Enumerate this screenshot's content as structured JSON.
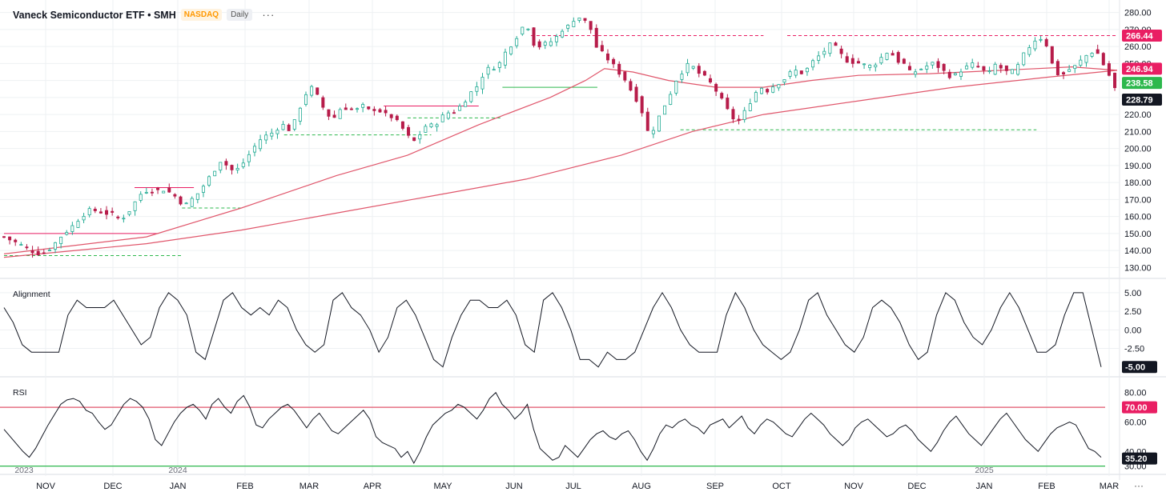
{
  "header": {
    "title": "Vaneck Semiconductor ETF • SMH",
    "exchange": "NASDAQ",
    "interval": "Daily",
    "more": "···"
  },
  "colors": {
    "up": "#22ab94",
    "down": "#b71c4a",
    "ma": "#e0566b",
    "grid": "#eef0f3",
    "green_label": "#2db84d",
    "red_label": "#e91e63",
    "dark_label": "#131722"
  },
  "chart_data": [
    {
      "type": "candlestick",
      "title": "Vaneck Semiconductor ETF • SMH",
      "y_axis_ticks": [
        "280.00",
        "270.00",
        "260.00",
        "250.00",
        "240.00",
        "230.00",
        "220.00",
        "210.00",
        "200.00",
        "190.00",
        "180.00",
        "170.00",
        "160.00",
        "150.00",
        "140.00",
        "130.00"
      ],
      "ylim": [
        125,
        285
      ],
      "x_tick_labels": [
        "NOV",
        "DEC",
        "JAN",
        "FEB",
        "MAR",
        "APR",
        "MAY",
        "JUN",
        "JUL",
        "AUG",
        "SEP",
        "OCT",
        "NOV",
        "DEC",
        "JAN",
        "FEB",
        "MAR"
      ],
      "year_labels": [
        "2023",
        "2024",
        "2025"
      ],
      "close_path": [
        [
          0,
          148
        ],
        [
          6,
          144
        ],
        [
          10,
          141
        ],
        [
          13,
          139
        ],
        [
          16,
          138
        ],
        [
          19,
          141
        ],
        [
          22,
          145
        ],
        [
          25,
          150
        ],
        [
          28,
          153
        ],
        [
          31,
          158
        ],
        [
          34,
          162
        ],
        [
          37,
          164
        ],
        [
          40,
          163
        ],
        [
          43,
          162
        ],
        [
          46,
          161
        ],
        [
          49,
          158
        ],
        [
          52,
          162
        ],
        [
          55,
          168
        ],
        [
          58,
          174
        ],
        [
          61,
          176
        ],
        [
          64,
          175
        ],
        [
          67,
          176
        ],
        [
          70,
          174
        ],
        [
          73,
          171
        ],
        [
          76,
          166
        ],
        [
          79,
          170
        ],
        [
          82,
          174
        ],
        [
          85,
          180
        ],
        [
          88,
          186
        ],
        [
          91,
          193
        ],
        [
          94,
          190
        ],
        [
          97,
          186
        ],
        [
          100,
          190
        ],
        [
          103,
          196
        ],
        [
          106,
          202
        ],
        [
          109,
          207
        ],
        [
          112,
          208
        ],
        [
          115,
          212
        ],
        [
          118,
          214
        ],
        [
          121,
          210
        ],
        [
          124,
          222
        ],
        [
          127,
          232
        ],
        [
          130,
          236
        ],
        [
          133,
          228
        ],
        [
          136,
          220
        ],
        [
          139,
          218
        ],
        [
          142,
          224
        ],
        [
          145,
          224
        ],
        [
          148,
          222
        ],
        [
          151,
          225
        ],
        [
          154,
          222
        ],
        [
          157,
          224
        ],
        [
          160,
          220
        ],
        [
          163,
          219
        ],
        [
          166,
          215
        ],
        [
          169,
          210
        ],
        [
          172,
          203
        ],
        [
          175,
          208
        ],
        [
          178,
          214
        ],
        [
          181,
          213
        ],
        [
          184,
          218
        ],
        [
          187,
          221
        ],
        [
          190,
          222
        ],
        [
          193,
          226
        ],
        [
          196,
          232
        ],
        [
          199,
          236
        ],
        [
          202,
          244
        ],
        [
          205,
          248
        ],
        [
          208,
          248
        ],
        [
          211,
          256
        ],
        [
          214,
          262
        ],
        [
          217,
          268
        ],
        [
          220,
          275
        ],
        [
          223,
          262
        ],
        [
          226,
          260
        ],
        [
          229,
          262
        ],
        [
          232,
          264
        ],
        [
          235,
          270
        ],
        [
          238,
          272
        ],
        [
          241,
          278
        ],
        [
          244,
          276
        ],
        [
          247,
          271
        ],
        [
          250,
          258
        ],
        [
          253,
          255
        ],
        [
          256,
          250
        ],
        [
          259,
          245
        ],
        [
          262,
          240
        ],
        [
          265,
          232
        ],
        [
          268,
          226
        ],
        [
          271,
          210
        ],
        [
          274,
          212
        ],
        [
          277,
          222
        ],
        [
          280,
          230
        ],
        [
          283,
          240
        ],
        [
          286,
          246
        ],
        [
          289,
          250
        ],
        [
          292,
          245
        ],
        [
          295,
          242
        ],
        [
          298,
          238
        ],
        [
          301,
          232
        ],
        [
          304,
          224
        ],
        [
          307,
          218
        ],
        [
          310,
          216
        ],
        [
          313,
          224
        ],
        [
          316,
          232
        ],
        [
          319,
          236
        ],
        [
          322,
          234
        ],
        [
          325,
          238
        ],
        [
          328,
          240
        ],
        [
          331,
          244
        ],
        [
          334,
          246
        ],
        [
          337,
          244
        ],
        [
          340,
          250
        ],
        [
          343,
          254
        ],
        [
          346,
          258
        ],
        [
          349,
          262
        ],
        [
          352,
          256
        ],
        [
          355,
          252
        ],
        [
          358,
          251
        ],
        [
          361,
          250
        ],
        [
          364,
          248
        ],
        [
          367,
          250
        ],
        [
          370,
          254
        ],
        [
          373,
          258
        ],
        [
          376,
          252
        ],
        [
          379,
          250
        ],
        [
          382,
          244
        ],
        [
          385,
          246
        ],
        [
          388,
          248
        ],
        [
          391,
          250
        ],
        [
          394,
          248
        ],
        [
          397,
          244
        ],
        [
          400,
          242
        ],
        [
          403,
          246
        ],
        [
          406,
          248
        ],
        [
          409,
          250
        ],
        [
          412,
          246
        ],
        [
          415,
          244
        ],
        [
          418,
          250
        ],
        [
          421,
          246
        ],
        [
          424,
          244
        ],
        [
          427,
          248
        ],
        [
          430,
          256
        ],
        [
          433,
          262
        ],
        [
          436,
          266
        ],
        [
          439,
          262
        ],
        [
          442,
          248
        ],
        [
          445,
          242
        ],
        [
          448,
          246
        ],
        [
          451,
          248
        ],
        [
          454,
          252
        ],
        [
          457,
          256
        ],
        [
          460,
          258
        ],
        [
          463,
          250
        ],
        [
          466,
          242
        ],
        [
          469,
          232
        ]
      ],
      "moving_averages": [
        {
          "name": "",
          "points": [
            [
              0,
              138
            ],
            [
              60,
              148
            ],
            [
              100,
              165
            ],
            [
              140,
              184
            ],
            [
              170,
              196
            ],
            [
              200,
              214
            ],
            [
              230,
              230
            ],
            [
              245,
              240
            ],
            [
              253,
              247
            ],
            [
              265,
              245
            ],
            [
              280,
              240
            ],
            [
              300,
              236
            ],
            [
              320,
              236
            ],
            [
              340,
              240
            ],
            [
              360,
              243
            ],
            [
              390,
              244
            ],
            [
              420,
              246
            ],
            [
              450,
              248
            ],
            [
              469,
              246
            ]
          ]
        },
        {
          "name": "",
          "points": [
            [
              0,
              136
            ],
            [
              60,
              144
            ],
            [
              100,
              152
            ],
            [
              140,
              162
            ],
            [
              180,
              172
            ],
            [
              220,
              182
            ],
            [
              260,
              196
            ],
            [
              290,
              210
            ],
            [
              320,
              220
            ],
            [
              360,
              228
            ],
            [
              400,
              236
            ],
            [
              440,
              242
            ],
            [
              469,
              246
            ]
          ]
        }
      ],
      "levels": [
        {
          "value": 266.44,
          "style": "dashed",
          "color": "#e91e63",
          "from": 222,
          "to": 320
        },
        {
          "value": 266.44,
          "style": "dashed",
          "color": "#e91e63",
          "from": 330,
          "to": 469
        },
        {
          "value": 211,
          "style": "dashed",
          "color": "#2db84d",
          "from": 285,
          "to": 435
        },
        {
          "value": 236,
          "style": "solid",
          "color": "#2db84d",
          "from": 210,
          "to": 250
        },
        {
          "value": 137,
          "style": "dashed",
          "color": "#2db84d",
          "from": 0,
          "to": 75
        },
        {
          "value": 150,
          "style": "solid",
          "color": "#e91e63",
          "from": 0,
          "to": 65
        },
        {
          "value": 177,
          "style": "solid",
          "color": "#e91e63",
          "from": 55,
          "to": 80
        },
        {
          "value": 165,
          "style": "dashed",
          "color": "#2db84d",
          "from": 75,
          "to": 100
        },
        {
          "value": 208,
          "style": "dashed",
          "color": "#2db84d",
          "from": 118,
          "to": 180
        },
        {
          "value": 218,
          "style": "dashed",
          "color": "#2db84d",
          "from": 170,
          "to": 210
        },
        {
          "value": 225,
          "style": "solid",
          "color": "#e91e63",
          "from": 160,
          "to": 200
        }
      ],
      "price_labels": [
        {
          "value": 266.44,
          "text": "266.44",
          "color": "#e91e63"
        },
        {
          "value": 246.94,
          "text": "246.94",
          "color": "#e91e63"
        },
        {
          "value": 238.58,
          "text": "238.58",
          "color": "#2db84d"
        },
        {
          "value": 228.79,
          "text": "228.79",
          "color": "#131722"
        }
      ]
    },
    {
      "type": "line",
      "title": "Alignment",
      "y_axis_ticks": [
        "5.00",
        "2.50",
        "0.00",
        "-2.50"
      ],
      "ylim": [
        -6,
        6.5
      ],
      "series": [
        {
          "values": [
            3,
            1,
            -2,
            -3,
            -3,
            -3,
            -3,
            2,
            4,
            3,
            3,
            3,
            4,
            2,
            0,
            -2,
            -1,
            3,
            5,
            4,
            2,
            -3,
            -4,
            0,
            4,
            5,
            3,
            2,
            3,
            2,
            4,
            3,
            0,
            -2,
            -3,
            -2,
            4,
            5,
            3,
            2,
            0,
            -3,
            -1,
            3,
            4,
            2,
            -1,
            -4,
            -5,
            -1,
            2,
            4,
            4,
            3,
            3,
            4,
            2,
            -2,
            -3,
            4,
            5,
            3,
            0,
            -4,
            -4,
            -5,
            -3,
            -4,
            -4,
            -3,
            0,
            3,
            5,
            3,
            0,
            -2,
            -3,
            -3,
            -3,
            2,
            5,
            3,
            0,
            -2,
            -3,
            -4,
            -3,
            0,
            4,
            5,
            2,
            0,
            -2,
            -3,
            -1,
            3,
            4,
            3,
            1,
            -2,
            -4,
            -3,
            2,
            5,
            4,
            1,
            -1,
            -2,
            0,
            3,
            5,
            3,
            0,
            -3,
            -3,
            -2,
            2,
            5,
            5,
            0,
            -5
          ]
        }
      ],
      "end_label": "-5.00"
    },
    {
      "type": "line",
      "title": "RSI",
      "y_axis_ticks": [
        "80.00",
        "60.00",
        "40.00",
        "30.00"
      ],
      "ylim": [
        26,
        88
      ],
      "series": [
        {
          "values": [
            55,
            50,
            45,
            40,
            36,
            42,
            50,
            58,
            65,
            72,
            75,
            76,
            74,
            68,
            66,
            60,
            55,
            58,
            65,
            72,
            76,
            74,
            70,
            62,
            48,
            44,
            52,
            60,
            66,
            70,
            72,
            68,
            62,
            72,
            76,
            70,
            66,
            74,
            78,
            70,
            58,
            56,
            62,
            66,
            70,
            72,
            68,
            62,
            56,
            62,
            66,
            60,
            54,
            52,
            56,
            60,
            64,
            68,
            62,
            50,
            46,
            44,
            42,
            36,
            40,
            32,
            40,
            50,
            58,
            62,
            66,
            68,
            72,
            70,
            66,
            62,
            68,
            76,
            80,
            72,
            68,
            62,
            66,
            72,
            55,
            42,
            38,
            34,
            36,
            44,
            40,
            36,
            42,
            48,
            52,
            54,
            50,
            48,
            52,
            54,
            48,
            40,
            34,
            42,
            52,
            58,
            56,
            60,
            62,
            58,
            56,
            52,
            58,
            60,
            62,
            56,
            60,
            64,
            56,
            52,
            58,
            62,
            60,
            56,
            52,
            50,
            56,
            62,
            66,
            62,
            58,
            52,
            48,
            44,
            48,
            56,
            60,
            62,
            58,
            54,
            50,
            52,
            56,
            58,
            54,
            48,
            44,
            40,
            46,
            54,
            60,
            64,
            58,
            52,
            48,
            44,
            50,
            56,
            62,
            66,
            60,
            54,
            48,
            44,
            40,
            46,
            52,
            56,
            58,
            60,
            58,
            50,
            42,
            40,
            36
          ]
        }
      ],
      "levels": [
        {
          "value": 70,
          "color": "#e0566b"
        },
        {
          "value": 30,
          "color": "#2db84d"
        }
      ],
      "end_labels": [
        {
          "value": 70,
          "text": "70.00",
          "color": "#e91e63"
        },
        {
          "value": 35.2,
          "text": "35.20",
          "color": "#131722"
        }
      ]
    }
  ]
}
